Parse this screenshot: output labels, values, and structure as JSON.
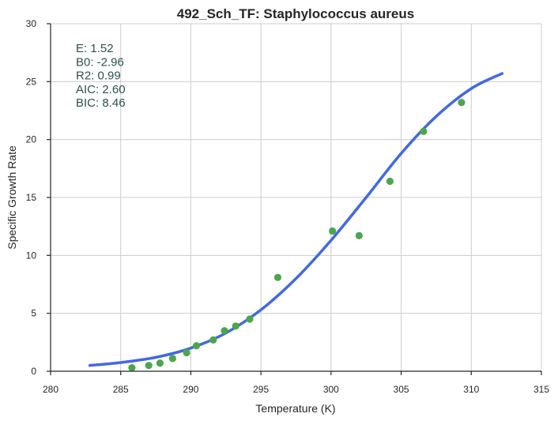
{
  "chart_data": {
    "type": "scatter",
    "title": "492_Sch_TF: Staphylococcus aureus",
    "xlabel": "Temperature (K)",
    "ylabel": "Specific Growth Rate",
    "xlim": [
      280,
      315
    ],
    "ylim": [
      0,
      30
    ],
    "xticks": [
      280,
      285,
      290,
      295,
      300,
      305,
      310,
      315
    ],
    "yticks": [
      0,
      5,
      10,
      15,
      20,
      25,
      30
    ],
    "grid": true,
    "stats": [
      {
        "label": "E:",
        "value": "1.52"
      },
      {
        "label": "B0:",
        "value": "-2.96"
      },
      {
        "label": "R2:",
        "value": "0.99"
      },
      {
        "label": "AIC:",
        "value": "2.60"
      },
      {
        "label": "BIC:",
        "value": "8.46"
      }
    ],
    "points": {
      "color": "#4ca64c",
      "x": [
        285.8,
        287.0,
        287.8,
        288.7,
        289.7,
        290.4,
        291.6,
        292.4,
        293.2,
        294.2,
        296.2,
        300.1,
        302.0,
        304.2,
        306.6,
        309.3
      ],
      "y": [
        0.3,
        0.5,
        0.7,
        1.1,
        1.6,
        2.2,
        2.7,
        3.5,
        3.9,
        4.5,
        8.1,
        12.1,
        11.7,
        16.4,
        20.7,
        23.2
      ]
    },
    "fit": {
      "color": "#4169e1",
      "x": [
        282.8,
        285,
        287.5,
        290,
        292.5,
        295,
        297.5,
        300,
        302.5,
        305,
        307.5,
        310,
        312.2
      ],
      "y": [
        0.5,
        0.75,
        1.2,
        2.0,
        3.3,
        5.3,
        8.0,
        11.3,
        15.0,
        18.8,
        22.0,
        24.4,
        25.7
      ]
    }
  }
}
